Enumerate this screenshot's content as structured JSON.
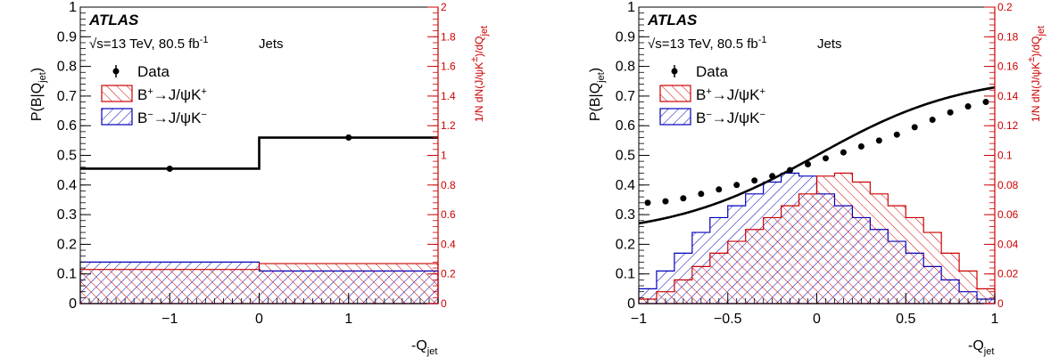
{
  "colors": {
    "data": "#000000",
    "fit": "#000000",
    "bplus": "#cc0000",
    "bminus": "#0000bb",
    "right_axis": "#cc0000"
  },
  "chart_data": [
    {
      "type": "bar",
      "panel": "left",
      "xlabel": "-Q",
      "xlabel_sub": "jet",
      "ylabel": "P(B|Q",
      "ylabel_sub": "jet",
      "ylabel_tail": ")",
      "y2label": "1/N dN(J/ψK",
      "y2label_sup": "±",
      "y2label_mid": ")/dQ",
      "y2label_sub": "jet",
      "xlim": [
        -2,
        2
      ],
      "ylim": [
        0,
        1
      ],
      "y2lim": [
        0,
        2
      ],
      "xticks": [
        {
          "value": -1,
          "label": "−1"
        },
        {
          "value": 0,
          "label": "0"
        },
        {
          "value": 1,
          "label": "1"
        }
      ],
      "yticks": [
        {
          "value": 0,
          "label": "0"
        },
        {
          "value": 0.1,
          "label": "0.1"
        },
        {
          "value": 0.2,
          "label": "0.2"
        },
        {
          "value": 0.3,
          "label": "0.3"
        },
        {
          "value": 0.4,
          "label": "0.4"
        },
        {
          "value": 0.5,
          "label": "0.5"
        },
        {
          "value": 0.6,
          "label": "0.6"
        },
        {
          "value": 0.7,
          "label": "0.7"
        },
        {
          "value": 0.8,
          "label": "0.8"
        },
        {
          "value": 0.9,
          "label": "0.9"
        },
        {
          "value": 1,
          "label": "1"
        }
      ],
      "y2ticks": [
        {
          "value": 0,
          "label": "0"
        },
        {
          "value": 0.2,
          "label": "0.2"
        },
        {
          "value": 0.4,
          "label": "0.4"
        },
        {
          "value": 0.6,
          "label": "0.6"
        },
        {
          "value": 0.8,
          "label": "0.8"
        },
        {
          "value": 1,
          "label": "1"
        },
        {
          "value": 1.2,
          "label": "1.2"
        },
        {
          "value": 1.4,
          "label": "1.4"
        },
        {
          "value": 1.6,
          "label": "1.6"
        },
        {
          "value": 1.8,
          "label": "1.8"
        },
        {
          "value": 2,
          "label": "2"
        }
      ],
      "bin_edges": [
        -2,
        0,
        2
      ],
      "data_points": {
        "x": [
          -1,
          1
        ],
        "y": [
          0.455,
          0.56
        ]
      },
      "fit": {
        "kind": "step",
        "edges": [
          -2,
          0,
          2
        ],
        "values": [
          0.455,
          0.56
        ]
      },
      "bplus": [
        0.23,
        0.27
      ],
      "bminus": [
        0.28,
        0.22
      ],
      "atlas_label": "ATLAS",
      "energy": "√s=13 TeV, 80.5 fb",
      "energy_sup": "-1",
      "category": "Jets",
      "legend": [
        {
          "key": "data",
          "label": "Data"
        },
        {
          "key": "bplus",
          "label": "B",
          "sup": "+",
          "rest": "→J/ψK",
          "sup2": "+"
        },
        {
          "key": "bminus",
          "label": "B",
          "sup": "−",
          "rest": "→J/ψK",
          "sup2": "−"
        }
      ]
    },
    {
      "type": "bar",
      "panel": "right",
      "xlabel": "-Q",
      "xlabel_sub": "jet",
      "ylabel": "P(B|Q",
      "ylabel_sub": "jet",
      "ylabel_tail": ")",
      "y2label": "1/N dN(J/ψK",
      "y2label_sup": "±",
      "y2label_mid": ")/dQ",
      "y2label_sub": "jet",
      "xlim": [
        -1,
        1
      ],
      "ylim": [
        0,
        1
      ],
      "y2lim": [
        0,
        0.2
      ],
      "xticks": [
        {
          "value": -1,
          "label": "−1"
        },
        {
          "value": -0.5,
          "label": "−0.5"
        },
        {
          "value": 0,
          "label": "0"
        },
        {
          "value": 0.5,
          "label": "0.5"
        },
        {
          "value": 1,
          "label": "1"
        }
      ],
      "yticks": [
        {
          "value": 0,
          "label": "0"
        },
        {
          "value": 0.1,
          "label": "0.1"
        },
        {
          "value": 0.2,
          "label": "0.2"
        },
        {
          "value": 0.3,
          "label": "0.3"
        },
        {
          "value": 0.4,
          "label": "0.4"
        },
        {
          "value": 0.5,
          "label": "0.5"
        },
        {
          "value": 0.6,
          "label": "0.6"
        },
        {
          "value": 0.7,
          "label": "0.7"
        },
        {
          "value": 0.8,
          "label": "0.8"
        },
        {
          "value": 0.9,
          "label": "0.9"
        },
        {
          "value": 1,
          "label": "1"
        }
      ],
      "y2ticks": [
        {
          "value": 0,
          "label": "0"
        },
        {
          "value": 0.02,
          "label": "0.02"
        },
        {
          "value": 0.04,
          "label": "0.04"
        },
        {
          "value": 0.06,
          "label": "0.06"
        },
        {
          "value": 0.08,
          "label": "0.08"
        },
        {
          "value": 0.1,
          "label": "0.1"
        },
        {
          "value": 0.12,
          "label": "0.12"
        },
        {
          "value": 0.14,
          "label": "0.14"
        },
        {
          "value": 0.16,
          "label": "0.16"
        },
        {
          "value": 0.18,
          "label": "0.18"
        },
        {
          "value": 0.2,
          "label": "0.2"
        }
      ],
      "bin_edges": [
        -1,
        -0.9,
        -0.8,
        -0.7,
        -0.6,
        -0.5,
        -0.4,
        -0.3,
        -0.2,
        -0.1,
        0,
        0.1,
        0.2,
        0.3,
        0.4,
        0.5,
        0.6,
        0.7,
        0.8,
        0.9,
        1
      ],
      "data_points": {
        "x": [
          -0.95,
          -0.85,
          -0.75,
          -0.65,
          -0.55,
          -0.45,
          -0.35,
          -0.25,
          -0.15,
          -0.05,
          0.05,
          0.15,
          0.25,
          0.35,
          0.45,
          0.55,
          0.65,
          0.75,
          0.85,
          0.95
        ],
        "y": [
          0.34,
          0.345,
          0.355,
          0.37,
          0.385,
          0.4,
          0.415,
          0.43,
          0.45,
          0.47,
          0.49,
          0.51,
          0.53,
          0.55,
          0.57,
          0.595,
          0.62,
          0.645,
          0.665,
          0.68
        ]
      },
      "fit": {
        "kind": "sigmoid",
        "center": 0.0,
        "amplitude": 0.55,
        "steepness": 1.2,
        "offset": 0.225
      },
      "bplus": [
        0.003,
        0.008,
        0.016,
        0.025,
        0.034,
        0.042,
        0.05,
        0.058,
        0.066,
        0.074,
        0.086,
        0.088,
        0.082,
        0.074,
        0.066,
        0.058,
        0.048,
        0.034,
        0.022,
        0.01
      ],
      "bminus": [
        0.01,
        0.022,
        0.034,
        0.048,
        0.058,
        0.066,
        0.074,
        0.082,
        0.088,
        0.086,
        0.074,
        0.066,
        0.058,
        0.05,
        0.042,
        0.034,
        0.025,
        0.016,
        0.008,
        0.003
      ],
      "atlas_label": "ATLAS",
      "energy": "√s=13 TeV, 80.5 fb",
      "energy_sup": "-1",
      "category": "Jets",
      "legend": [
        {
          "key": "data",
          "label": "Data"
        },
        {
          "key": "bplus",
          "label": "B",
          "sup": "+",
          "rest": "→J/ψK",
          "sup2": "+"
        },
        {
          "key": "bminus",
          "label": "B",
          "sup": "−",
          "rest": "→J/ψK",
          "sup2": "−"
        }
      ]
    }
  ]
}
